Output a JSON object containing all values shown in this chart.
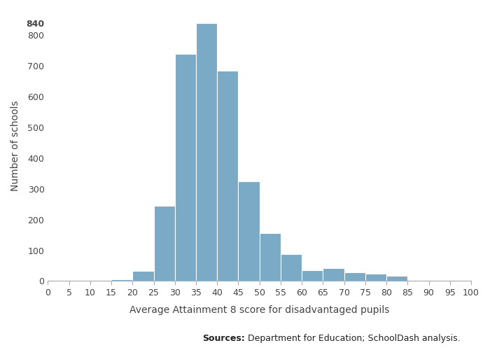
{
  "bin_left_edges": [
    0,
    5,
    10,
    15,
    20,
    25,
    30,
    35,
    40,
    45,
    50,
    55,
    60,
    65,
    70,
    75,
    80,
    85,
    90,
    95
  ],
  "counts": [
    2,
    2,
    2,
    5,
    33,
    245,
    738,
    840,
    685,
    325,
    155,
    88,
    35,
    43,
    28,
    24,
    16,
    3,
    2,
    2
  ],
  "bar_color": "#7aaac5",
  "xlabel": "Average Attainment 8 score for disadvantaged pupils",
  "ylabel": "Number of schools",
  "yticks": [
    0,
    100,
    200,
    300,
    400,
    500,
    600,
    700,
    800,
    840
  ],
  "xticks": [
    0,
    5,
    10,
    15,
    20,
    25,
    30,
    35,
    40,
    45,
    50,
    55,
    60,
    65,
    70,
    75,
    80,
    85,
    90,
    95,
    100
  ],
  "xlim": [
    0,
    100
  ],
  "ylim": [
    0,
    880
  ],
  "source_bold": "Sources:",
  "source_normal": " Department for Education; SchoolDash analysis.",
  "background_color": "#ffffff",
  "spine_color": "#aaaaaa",
  "tick_label_color": "#444444",
  "xlabel_fontsize": 10,
  "ylabel_fontsize": 10,
  "tick_fontsize": 9,
  "bin_width": 5
}
